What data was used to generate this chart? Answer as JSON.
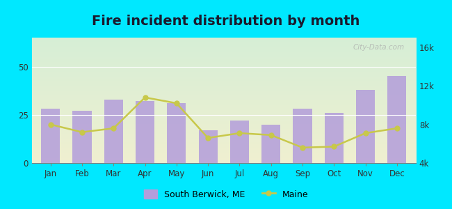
{
  "months": [
    "Jan",
    "Feb",
    "Mar",
    "Apr",
    "May",
    "Jun",
    "Jul",
    "Aug",
    "Sep",
    "Oct",
    "Nov",
    "Dec"
  ],
  "bar_values": [
    28,
    27,
    33,
    32,
    31,
    17,
    22,
    20,
    28,
    26,
    38,
    45
  ],
  "line_values": [
    8000,
    7200,
    7600,
    10800,
    10200,
    6600,
    7100,
    6900,
    5600,
    5700,
    7100,
    7600
  ],
  "bar_color": "#b39ddb",
  "bar_alpha": 0.85,
  "line_color": "#c8c84a",
  "bg_outer": "#00e8ff",
  "bg_gradient_top": "#d6eed6",
  "bg_gradient_bottom": "#f0f0d0",
  "title": "Fire incident distribution by month",
  "title_fontsize": 14,
  "left_ylim": [
    0,
    65
  ],
  "right_ylim": [
    4000,
    17000
  ],
  "left_yticks": [
    0,
    25,
    50
  ],
  "right_yticks": [
    4000,
    8000,
    12000,
    16000
  ],
  "right_yticklabels": [
    "4k",
    "8k",
    "12k",
    "16k"
  ],
  "legend_label_bar": "South Berwick, ME",
  "legend_label_line": "Maine",
  "watermark": "City-Data.com"
}
